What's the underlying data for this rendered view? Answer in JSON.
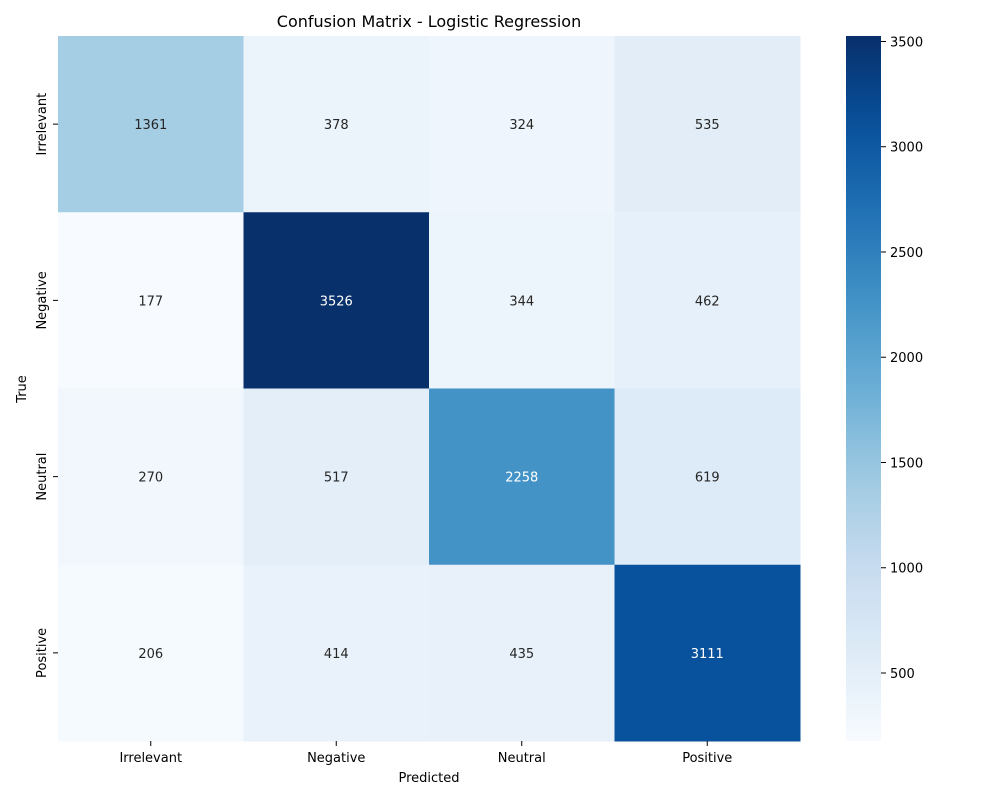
{
  "chart_data": {
    "type": "heatmap",
    "title": "Confusion Matrix - Logistic Regression",
    "xlabel": "Predicted",
    "ylabel": "True",
    "x_categories": [
      "Irrelevant",
      "Negative",
      "Neutral",
      "Positive"
    ],
    "y_categories": [
      "Irrelevant",
      "Negative",
      "Neutral",
      "Positive"
    ],
    "values": [
      [
        1361,
        378,
        324,
        535
      ],
      [
        177,
        3526,
        344,
        462
      ],
      [
        270,
        517,
        2258,
        619
      ],
      [
        206,
        414,
        435,
        3111
      ]
    ],
    "colormap": "Blues",
    "colorbar": {
      "range": [
        177,
        3526
      ],
      "ticks": [
        500,
        1000,
        1500,
        2000,
        2500,
        3000,
        3500
      ],
      "tick_labels": [
        "500",
        "1000",
        "1500",
        "2000",
        "2500",
        "3000",
        "3500"
      ]
    },
    "colors": {
      "low": "#f7fbff",
      "high": "#08306b",
      "text_dark": "#262626",
      "text_light": "#ffffff"
    }
  }
}
